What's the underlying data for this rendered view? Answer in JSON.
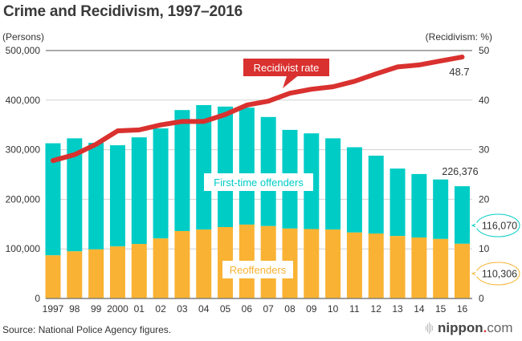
{
  "chart_data": {
    "type": "bar",
    "stacked": true,
    "title": "Crime and Recidivism, 1997–2016",
    "ylabel_left": "(Persons)",
    "ylabel_right": "(Recidivism: %)",
    "ylim_left": [
      0,
      500000
    ],
    "ylim_right": [
      0,
      50
    ],
    "yticks_left": [
      "0",
      "100,000",
      "200,000",
      "300,000",
      "400,000",
      "500,000"
    ],
    "yticks_left_values": [
      0,
      100000,
      200000,
      300000,
      400000,
      500000
    ],
    "yticks_right": [
      "0",
      "10",
      "20",
      "30",
      "40",
      "50"
    ],
    "yticks_right_values": [
      0,
      10,
      20,
      30,
      40,
      50
    ],
    "grid": true,
    "categories": [
      "1997",
      "98",
      "99",
      "2000",
      "01",
      "02",
      "03",
      "04",
      "05",
      "06",
      "07",
      "08",
      "09",
      "10",
      "11",
      "12",
      "13",
      "14",
      "15",
      "16"
    ],
    "series": [
      {
        "name": "Reoffenders",
        "color": "#f9b233",
        "values": [
          87000,
          95000,
          99000,
          105000,
          110000,
          121000,
          136000,
          139000,
          144000,
          149000,
          146000,
          141000,
          140000,
          139000,
          133000,
          131000,
          126000,
          123000,
          120000,
          110306
        ]
      },
      {
        "name": "First-time offenders",
        "color": "#00ccc6",
        "values": [
          226000,
          228000,
          215000,
          204000,
          215000,
          222000,
          244000,
          251000,
          243000,
          236000,
          220000,
          199000,
          193000,
          184000,
          172000,
          157000,
          136000,
          128000,
          120000,
          116070
        ]
      },
      {
        "name": "Recidivist rate",
        "type": "line",
        "axis": "right",
        "color": "#d9312f",
        "values": [
          27.8,
          29.0,
          31.1,
          33.8,
          34.0,
          35.0,
          35.7,
          35.7,
          37.1,
          39.0,
          39.8,
          41.4,
          42.2,
          42.7,
          43.8,
          45.3,
          46.7,
          47.1,
          47.9,
          48.7
        ]
      }
    ],
    "annotations": {
      "total_2016": "226,376",
      "first_time_2016": "116,070",
      "reoffenders_2016": "110,306",
      "rate_2016": "48.7",
      "label_first_time": "First-time offenders",
      "label_reoffenders": "Reoffenders",
      "label_rate": "Recidivist rate"
    },
    "legend": "inline"
  },
  "footer": {
    "source": "Source: National Police Agency figures.",
    "logo_brand": "nippon",
    "logo_dot": ".",
    "logo_tld": "com"
  }
}
